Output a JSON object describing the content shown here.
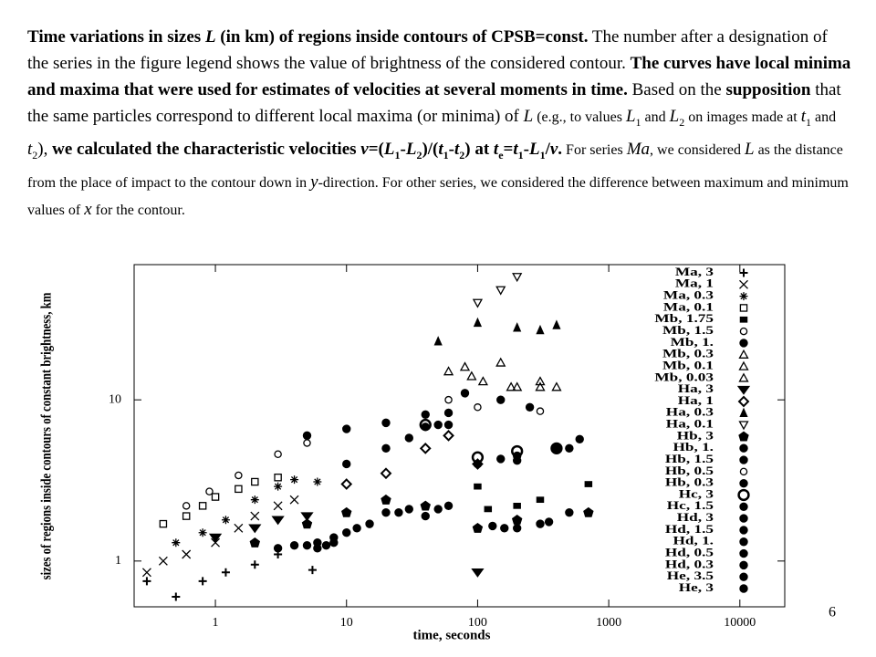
{
  "paragraph": [
    {
      "text": "Time variations in sizes ",
      "style": "b"
    },
    {
      "text": "L",
      "style": "bi"
    },
    {
      "text": " (in km) of regions inside contours of CPSB=const.",
      "style": "b"
    },
    {
      "text": " The number after a designation of the series in the figure legend shows the value of brightness of the considered contour. ",
      "style": "n"
    },
    {
      "text": "The curves have local minima and maxima that were used for estimates of velocities at several moments in time.",
      "style": "b"
    },
    {
      "text": " Based on the ",
      "style": "n"
    },
    {
      "text": "supposition",
      "style": "b"
    },
    {
      "text": " that the same particles correspond to different local maxima (or minima) of ",
      "style": "n"
    },
    {
      "text": "L",
      "style": "i"
    },
    {
      "text": " (e.g., to values ",
      "style": "s"
    },
    {
      "text": "L",
      "style": "i"
    },
    {
      "text": "1",
      "style": "sub"
    },
    {
      "text": " and ",
      "style": "s"
    },
    {
      "text": "L",
      "style": "i"
    },
    {
      "text": "2",
      "style": "sub"
    },
    {
      "text": " on images made at ",
      "style": "s"
    },
    {
      "text": "t",
      "style": "i"
    },
    {
      "text": "1",
      "style": "sub"
    },
    {
      "text": " and ",
      "style": "s"
    },
    {
      "text": "t",
      "style": "i"
    },
    {
      "text": "2",
      "style": "sub"
    },
    {
      "text": "), ",
      "style": "n"
    },
    {
      "text": "we calculated the characteristic velocities ",
      "style": "b"
    },
    {
      "text": "v",
      "style": "bi"
    },
    {
      "text": "=(",
      "style": "b"
    },
    {
      "text": "L",
      "style": "bi"
    },
    {
      "text": "1",
      "style": "bsub"
    },
    {
      "text": "-",
      "style": "b"
    },
    {
      "text": "L",
      "style": "bi"
    },
    {
      "text": "2",
      "style": "bsub"
    },
    {
      "text": ")/(",
      "style": "b"
    },
    {
      "text": "t",
      "style": "bi"
    },
    {
      "text": "1",
      "style": "bsub"
    },
    {
      "text": "-",
      "style": "b"
    },
    {
      "text": "t",
      "style": "bi"
    },
    {
      "text": "2",
      "style": "bsub"
    },
    {
      "text": ") at ",
      "style": "b"
    },
    {
      "text": "t",
      "style": "bi"
    },
    {
      "text": "e",
      "style": "bsub"
    },
    {
      "text": "=",
      "style": "b"
    },
    {
      "text": "t",
      "style": "bi"
    },
    {
      "text": "1",
      "style": "bsub"
    },
    {
      "text": "-",
      "style": "b"
    },
    {
      "text": "L",
      "style": "bi"
    },
    {
      "text": "1",
      "style": "bsub"
    },
    {
      "text": "/",
      "style": "b"
    },
    {
      "text": "v",
      "style": "bi"
    },
    {
      "text": ".",
      "style": "b"
    },
    {
      "text": " For series ",
      "style": "s"
    },
    {
      "text": "Ma",
      "style": "i"
    },
    {
      "text": ", we considered ",
      "style": "s"
    },
    {
      "text": "L",
      "style": "i"
    },
    {
      "text": " as the distance from the place of impact to the contour down in ",
      "style": "s"
    },
    {
      "text": "y",
      "style": "i"
    },
    {
      "text": "-direction. For other series, we considered the difference between maximum and minimum values of ",
      "style": "s"
    },
    {
      "text": "x",
      "style": "i"
    },
    {
      "text": " for the contour.",
      "style": "s"
    }
  ],
  "page_number": "6",
  "chart_data": {
    "type": "scatter",
    "xlabel": "time, seconds",
    "ylabel": "sizes of regions inside contours of constant brightness, km",
    "xlog": true,
    "ylog": true,
    "xlim": [
      0.24,
      22000
    ],
    "ylim": [
      0.52,
      69
    ],
    "xticks": [
      1,
      10,
      100,
      1000,
      10000
    ],
    "yticks": [
      1,
      10
    ],
    "legend": "right",
    "series": [
      {
        "name": "Ma, 3",
        "color": "#000000",
        "marker": "plus",
        "x": [
          0.3,
          0.5,
          0.8,
          1.2,
          2,
          3,
          5.5
        ],
        "values": [
          0.75,
          0.6,
          0.75,
          0.85,
          0.95,
          1.1,
          0.88
        ]
      },
      {
        "name": "Ma, 1",
        "color": "#000000",
        "marker": "cross",
        "x": [
          0.3,
          0.4,
          0.6,
          1,
          1.5,
          2,
          3,
          4
        ],
        "values": [
          0.85,
          1.0,
          1.1,
          1.3,
          1.6,
          1.9,
          2.2,
          2.4
        ]
      },
      {
        "name": "Ma, 0.3",
        "color": "#000000",
        "marker": "asterisk",
        "x": [
          0.5,
          0.8,
          1.2,
          2,
          3,
          4,
          6
        ],
        "values": [
          1.3,
          1.5,
          1.8,
          2.4,
          2.9,
          3.2,
          3.1
        ]
      },
      {
        "name": "Ma, 0.1",
        "color": "#000000",
        "marker": "square",
        "x": [
          0.4,
          0.6,
          0.8,
          1,
          1.5,
          2,
          3
        ],
        "values": [
          1.7,
          1.9,
          2.2,
          2.5,
          2.8,
          3.1,
          3.3
        ]
      },
      {
        "name": "Mb, 1.75",
        "color": "#000000",
        "marker": "square-filled",
        "x": [
          100,
          120,
          200,
          300,
          700
        ],
        "values": [
          2.9,
          2.1,
          2.2,
          2.4,
          3
        ]
      },
      {
        "name": "Mb, 1.5",
        "color": "#000000",
        "marker": "circle",
        "x": [
          0.6,
          0.9,
          1.5,
          3,
          5
        ],
        "values": [
          2.2,
          2.7,
          3.4,
          4.6,
          5.4
        ]
      },
      {
        "name": "Mb, 1.",
        "color": "#000000",
        "marker": "circle-filled",
        "x": [
          5,
          10,
          20,
          40,
          60
        ],
        "values": [
          6,
          6.6,
          7.2,
          8.1,
          8.3
        ]
      },
      {
        "name": "Mb, 0.3",
        "color": "#000000",
        "marker": "triangle",
        "x": [
          80,
          90,
          200,
          300,
          400
        ],
        "values": [
          16,
          14,
          12,
          12,
          12
        ]
      },
      {
        "name": "Mb, 0.1",
        "color": "#000000",
        "marker": "triangle",
        "x": [
          60,
          150,
          300
        ],
        "values": [
          15,
          17,
          13
        ]
      },
      {
        "name": "Mb, 0.03",
        "color": "#000000",
        "marker": "triangle",
        "x": [
          110,
          180
        ],
        "values": [
          13,
          12
        ]
      },
      {
        "name": "Ha, 3",
        "color": "#000000",
        "marker": "triangle-down-filled",
        "x": [
          1,
          2,
          3,
          5,
          100
        ],
        "values": [
          1.4,
          1.6,
          1.8,
          1.9,
          0.85
        ]
      },
      {
        "name": "Ha, 1",
        "color": "#000000",
        "marker": "diamond",
        "x": [
          10,
          20,
          40,
          60,
          100
        ],
        "values": [
          3,
          3.5,
          5,
          6,
          4
        ]
      },
      {
        "name": "Ha, 0.3",
        "color": "#000000",
        "marker": "triangle-filled",
        "x": [
          50,
          100,
          200,
          300,
          400
        ],
        "values": [
          23,
          30,
          28,
          27,
          29
        ]
      },
      {
        "name": "Ha, 0.1",
        "color": "#000000",
        "marker": "triangle-down",
        "x": [
          100,
          150,
          200
        ],
        "values": [
          40,
          48,
          58
        ]
      },
      {
        "name": "Hb, 3",
        "color": "#000000",
        "marker": "pentagon-filled",
        "x": [
          2,
          5,
          10,
          20,
          40,
          100,
          200,
          700
        ],
        "values": [
          1.3,
          1.7,
          2,
          2.4,
          2.2,
          1.6,
          1.8,
          2
        ]
      },
      {
        "name": "Hb, 1.",
        "color": "#000000",
        "marker": "circle-filled",
        "x": [
          10,
          20,
          40,
          100,
          200,
          600
        ],
        "values": [
          4,
          5,
          6.8,
          4,
          4.2,
          5.7
        ]
      },
      {
        "name": "Hb, 1.5",
        "color": "#000000",
        "marker": "circle-filled",
        "x": [
          30,
          60,
          150,
          400
        ],
        "values": [
          5.8,
          7,
          4.3,
          5
        ]
      },
      {
        "name": "Hb, 0.5",
        "color": "#000000",
        "marker": "circle",
        "x": [
          60,
          100,
          300
        ],
        "values": [
          10,
          9,
          8.5
        ]
      },
      {
        "name": "Hb, 0.3",
        "color": "#000000",
        "marker": "circle-filled",
        "x": [
          80,
          150,
          250
        ],
        "values": [
          11,
          10,
          9
        ]
      },
      {
        "name": "Hc, 3",
        "color": "#000000",
        "marker": "circle-big",
        "x": [
          40,
          100,
          200,
          400
        ],
        "values": [
          7,
          4.4,
          4.8,
          5
        ]
      },
      {
        "name": "Hc, 1.5",
        "color": "#000000",
        "marker": "circle-filled",
        "x": [
          50,
          100,
          200,
          500
        ],
        "values": [
          7,
          4,
          4.5,
          5
        ]
      },
      {
        "name": "Hd, 3",
        "color": "#000000",
        "marker": "circle-filled",
        "x": [
          20,
          50,
          100,
          200,
          500
        ],
        "values": [
          2,
          2.1,
          1.6,
          1.6,
          2
        ]
      },
      {
        "name": "Hd, 1.5",
        "color": "#000000",
        "marker": "circle-filled",
        "x": [
          30,
          60,
          130,
          300
        ],
        "values": [
          2.1,
          2.2,
          1.65,
          1.7
        ]
      },
      {
        "name": "Hd, 1.",
        "color": "#000000",
        "marker": "circle-filled",
        "x": [
          40,
          160,
          350
        ],
        "values": [
          1.9,
          1.6,
          1.75
        ]
      },
      {
        "name": "Hd, 0.5",
        "color": "#000000",
        "marker": "circle-filled",
        "x": [
          10,
          15,
          25
        ],
        "values": [
          1.5,
          1.7,
          2
        ]
      },
      {
        "name": "Hd, 0.3",
        "color": "#000000",
        "marker": "circle-filled",
        "x": [
          6,
          8,
          12
        ],
        "values": [
          1.3,
          1.4,
          1.6
        ]
      },
      {
        "name": "He, 3.5",
        "color": "#000000",
        "marker": "circle-filled",
        "x": [
          4,
          6,
          8
        ],
        "values": [
          1.25,
          1.2,
          1.3
        ]
      },
      {
        "name": "He, 3",
        "color": "#000000",
        "marker": "circle-filled",
        "x": [
          3,
          5,
          7
        ],
        "values": [
          1.2,
          1.25,
          1.25
        ]
      }
    ]
  }
}
